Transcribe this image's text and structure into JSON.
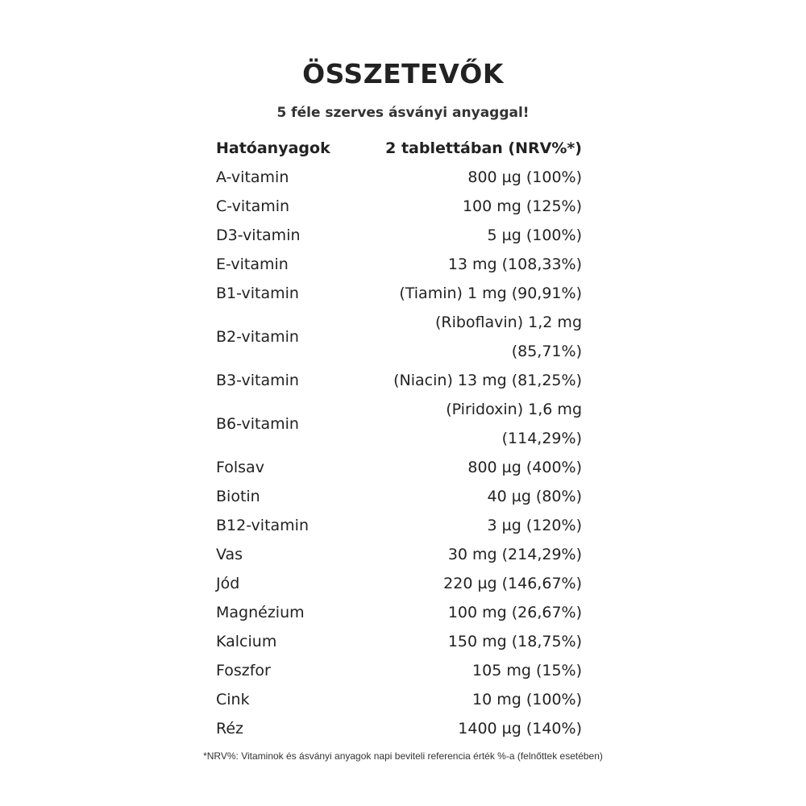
{
  "title": "ÖSSZETEVŐK",
  "subtitle": "5 féle szerves ásványi anyaggal!",
  "table": {
    "headers": [
      "Hatóanyagok",
      "2 tablettában (NRV%*)"
    ],
    "rows": [
      [
        "A-vitamin",
        "800 µg (100%)"
      ],
      [
        "C-vitamin",
        "100 mg (125%)"
      ],
      [
        "D3-vitamin",
        "5 µg (100%)"
      ],
      [
        "E-vitamin",
        "13 mg (108,33%)"
      ],
      [
        "B1-vitamin",
        "(Tiamin) 1 mg (90,91%)"
      ],
      [
        "B2-vitamin",
        "(Riboflavin) 1,2 mg (85,71%)"
      ],
      [
        "B3-vitamin",
        "(Niacin) 13 mg (81,25%)"
      ],
      [
        "B6-vitamin",
        "(Piridoxin) 1,6 mg (114,29%)"
      ],
      [
        "Folsav",
        "800 µg (400%)"
      ],
      [
        "Biotin",
        "40 µg (80%)"
      ],
      [
        "B12-vitamin",
        "3 µg (120%)"
      ],
      [
        "Vas",
        "30 mg (214,29%)"
      ],
      [
        "Jód",
        "220 µg (146,67%)"
      ],
      [
        "Magnézium",
        "100 mg (26,67%)"
      ],
      [
        "Kalcium",
        "150 mg (18,75%)"
      ],
      [
        "Foszfor",
        "105 mg (15%)"
      ],
      [
        "Cink",
        "10 mg (100%)"
      ],
      [
        "Réz",
        "1400 µg (140%)"
      ]
    ]
  },
  "footnote": "*NRV%: Vitaminok és ásványi anyagok napi beviteli referencia érték %-a (felnőttek esetében)"
}
